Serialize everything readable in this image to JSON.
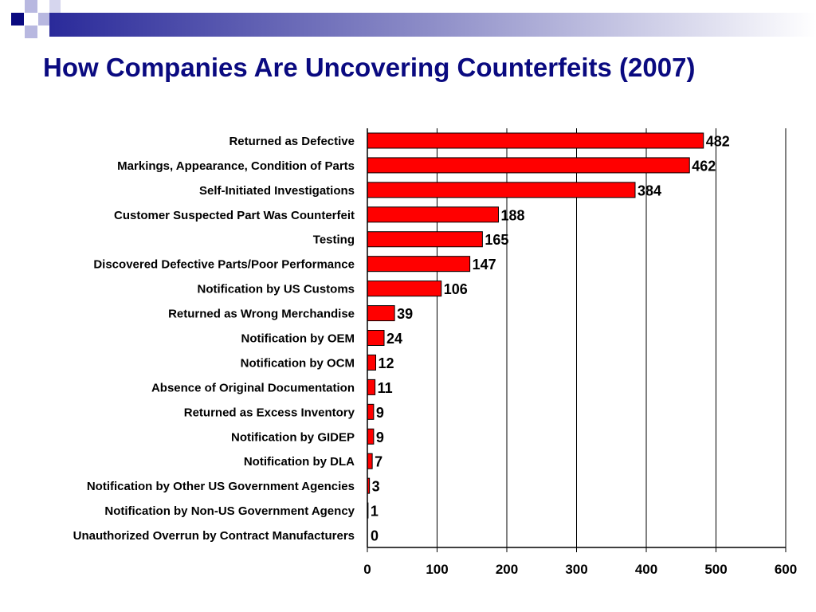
{
  "slide": {
    "title": "How Companies Are Uncovering Counterfeits (2007)",
    "accent_color": "#0a0a80"
  },
  "chart_data": {
    "type": "bar",
    "orientation": "horizontal",
    "title": "",
    "xlabel": "",
    "ylabel": "",
    "xlim": [
      0,
      600
    ],
    "xticks": [
      0,
      100,
      200,
      300,
      400,
      500,
      600
    ],
    "grid": true,
    "bar_color": "#ff0000",
    "categories": [
      "Returned as Defective",
      "Markings, Appearance, Condition of Parts",
      "Self-Initiated Investigations",
      "Customer Suspected Part Was Counterfeit",
      "Testing",
      "Discovered Defective Parts/Poor Performance",
      "Notification by US Customs",
      "Returned as Wrong Merchandise",
      "Notification by OEM",
      "Notification by OCM",
      "Absence of Original Documentation",
      "Returned as Excess Inventory",
      "Notification by GIDEP",
      "Notification by DLA",
      "Notification by Other US Government Agencies",
      "Notification by Non-US Government Agency",
      "Unauthorized Overrun by Contract Manufacturers"
    ],
    "values": [
      482,
      462,
      384,
      188,
      165,
      147,
      106,
      39,
      24,
      12,
      11,
      9,
      9,
      7,
      3,
      1,
      0
    ]
  }
}
